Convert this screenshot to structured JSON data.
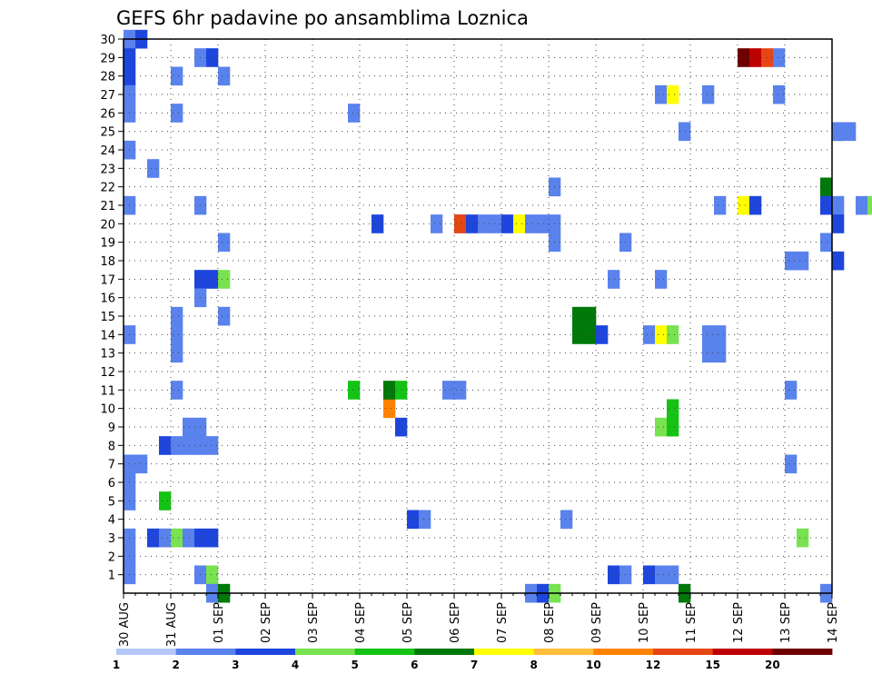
{
  "chart_data": {
    "type": "heatmap",
    "title": "GEFS 6hr padavine po ansamblima Loznica",
    "x_labels": [
      "30 AUG",
      "31 AUG",
      "01 SEP",
      "02 SEP",
      "03 SEP",
      "04 SEP",
      "05 SEP",
      "06 SEP",
      "07 SEP",
      "08 SEP",
      "09 SEP",
      "10 SEP",
      "11 SEP",
      "12 SEP",
      "13 SEP",
      "14 SEP"
    ],
    "y_labels": [
      "1",
      "2",
      "3",
      "4",
      "5",
      "6",
      "7",
      "8",
      "9",
      "10",
      "11",
      "12",
      "13",
      "14",
      "15",
      "16",
      "17",
      "18",
      "19",
      "20",
      "21",
      "22",
      "23",
      "24",
      "25",
      "26",
      "27",
      "28",
      "29",
      "30"
    ],
    "y_range": [
      0,
      30
    ],
    "time_steps_per_day": 4,
    "grid": "dotted",
    "legend": {
      "placement": "bottom",
      "labels": [
        "1",
        "2",
        "3",
        "4",
        "5",
        "6",
        "7",
        "8",
        "10",
        "12",
        "15",
        "20"
      ],
      "colors": [
        "#b4c8f8",
        "#5a82ec",
        "#1e46dc",
        "#78e250",
        "#14c314",
        "#00780a",
        "#ffff00",
        "#ffbe3c",
        "#ff8200",
        "#e64614",
        "#be0000",
        "#6e0000"
      ]
    },
    "cells": [
      [
        0,
        29,
        1
      ],
      [
        1,
        29,
        2
      ],
      [
        0,
        28,
        2
      ],
      [
        0,
        27,
        2
      ],
      [
        0,
        26,
        1
      ],
      [
        0,
        25,
        1
      ],
      [
        0,
        23,
        1
      ],
      [
        0,
        20,
        1
      ],
      [
        0,
        13,
        1
      ],
      [
        0,
        6,
        1
      ],
      [
        0,
        5,
        1
      ],
      [
        0,
        4,
        1
      ],
      [
        0,
        2,
        1
      ],
      [
        0,
        1,
        1
      ],
      [
        0,
        0,
        1
      ],
      [
        1,
        6,
        1
      ],
      [
        2,
        22,
        1
      ],
      [
        2,
        2,
        2
      ],
      [
        3,
        4,
        4
      ],
      [
        3,
        2,
        1
      ],
      [
        3,
        7,
        2
      ],
      [
        4,
        27,
        1
      ],
      [
        4,
        25,
        1
      ],
      [
        4,
        14,
        1
      ],
      [
        4,
        13,
        1
      ],
      [
        4,
        12,
        1
      ],
      [
        4,
        10,
        1
      ],
      [
        4,
        2,
        3
      ],
      [
        4,
        7,
        1
      ],
      [
        5,
        7,
        1
      ],
      [
        5,
        8,
        1
      ],
      [
        5,
        2,
        1
      ],
      [
        6,
        28,
        1
      ],
      [
        6,
        20,
        1
      ],
      [
        6,
        16,
        2
      ],
      [
        6,
        15,
        1
      ],
      [
        6,
        8,
        1
      ],
      [
        6,
        7,
        1
      ],
      [
        6,
        2,
        2
      ],
      [
        6,
        0,
        1
      ],
      [
        7,
        28,
        2
      ],
      [
        7,
        16,
        2
      ],
      [
        7,
        7,
        1
      ],
      [
        7,
        2,
        2
      ],
      [
        7,
        0,
        3
      ],
      [
        7,
        -1,
        1
      ],
      [
        8,
        27,
        1
      ],
      [
        8,
        18,
        1
      ],
      [
        8,
        16,
        3
      ],
      [
        8,
        14,
        1
      ],
      [
        8,
        -1,
        5
      ],
      [
        19,
        25,
        1
      ],
      [
        19,
        10,
        4
      ],
      [
        21,
        19,
        2
      ],
      [
        22,
        9,
        8
      ],
      [
        22,
        10,
        5
      ],
      [
        23,
        10,
        4
      ],
      [
        23,
        8,
        2
      ],
      [
        24,
        3,
        2
      ],
      [
        25,
        3,
        1
      ],
      [
        26,
        19,
        1
      ],
      [
        27,
        10,
        1
      ],
      [
        28,
        10,
        1
      ],
      [
        28,
        19,
        1
      ],
      [
        28,
        19,
        9
      ],
      [
        29,
        19,
        2
      ],
      [
        30,
        19,
        1
      ],
      [
        31,
        19,
        1
      ],
      [
        32,
        19,
        2
      ],
      [
        33,
        19,
        6
      ],
      [
        34,
        19,
        1
      ],
      [
        34,
        -1,
        1
      ],
      [
        35,
        -1,
        2
      ],
      [
        35,
        19,
        1
      ],
      [
        36,
        21,
        1
      ],
      [
        36,
        18,
        1
      ],
      [
        36,
        19,
        1
      ],
      [
        36,
        -1,
        3
      ],
      [
        37,
        3,
        1
      ],
      [
        38,
        14,
        5
      ],
      [
        38,
        13,
        5
      ],
      [
        39,
        14,
        5
      ],
      [
        39,
        13,
        5
      ],
      [
        40,
        13,
        2
      ],
      [
        41,
        0,
        2
      ],
      [
        41,
        16,
        1
      ],
      [
        42,
        0,
        1
      ],
      [
        42,
        18,
        1
      ],
      [
        44,
        13,
        1
      ],
      [
        44,
        0,
        2
      ],
      [
        45,
        26,
        1
      ],
      [
        45,
        16,
        1
      ],
      [
        45,
        13,
        6
      ],
      [
        45,
        0,
        1
      ],
      [
        45,
        8,
        3
      ],
      [
        46,
        26,
        6
      ],
      [
        46,
        13,
        3
      ],
      [
        46,
        9,
        4
      ],
      [
        46,
        8,
        4
      ],
      [
        46,
        0,
        1
      ],
      [
        47,
        24,
        1
      ],
      [
        47,
        -1,
        5
      ],
      [
        49,
        13,
        1
      ],
      [
        49,
        12,
        1
      ],
      [
        49,
        26,
        1
      ],
      [
        50,
        13,
        1
      ],
      [
        50,
        12,
        1
      ],
      [
        50,
        20,
        1
      ],
      [
        52,
        28,
        11
      ],
      [
        53,
        28,
        10
      ],
      [
        54,
        28,
        9
      ],
      [
        55,
        28,
        1
      ],
      [
        52,
        20,
        6
      ],
      [
        53,
        20,
        2
      ],
      [
        55,
        26,
        1
      ],
      [
        56,
        17,
        1
      ],
      [
        56,
        10,
        1
      ],
      [
        56,
        6,
        1
      ],
      [
        57,
        17,
        1
      ],
      [
        57,
        2,
        3
      ],
      [
        59,
        21,
        5
      ],
      [
        59,
        20,
        2
      ],
      [
        59,
        -1,
        1
      ],
      [
        59,
        18,
        1
      ],
      [
        60,
        24,
        5
      ],
      [
        60,
        24,
        1
      ],
      [
        60,
        20,
        1
      ],
      [
        60,
        19,
        2
      ],
      [
        60,
        17,
        2
      ],
      [
        61,
        24,
        1
      ],
      [
        62,
        20,
        1
      ],
      [
        63,
        20,
        3
      ],
      [
        64,
        20,
        1
      ],
      [
        65,
        4,
        2
      ],
      [
        65,
        9,
        1
      ],
      [
        66,
        4,
        6
      ],
      [
        66,
        9,
        7
      ],
      [
        66,
        -1,
        7
      ],
      [
        67,
        4,
        2
      ],
      [
        68,
        20,
        3
      ],
      [
        68,
        18,
        2
      ],
      [
        69,
        20,
        1
      ],
      [
        70,
        17,
        3
      ],
      [
        71,
        17,
        3
      ],
      [
        71,
        26,
        1
      ],
      [
        71,
        20,
        1
      ],
      [
        71,
        6,
        1
      ]
    ]
  }
}
